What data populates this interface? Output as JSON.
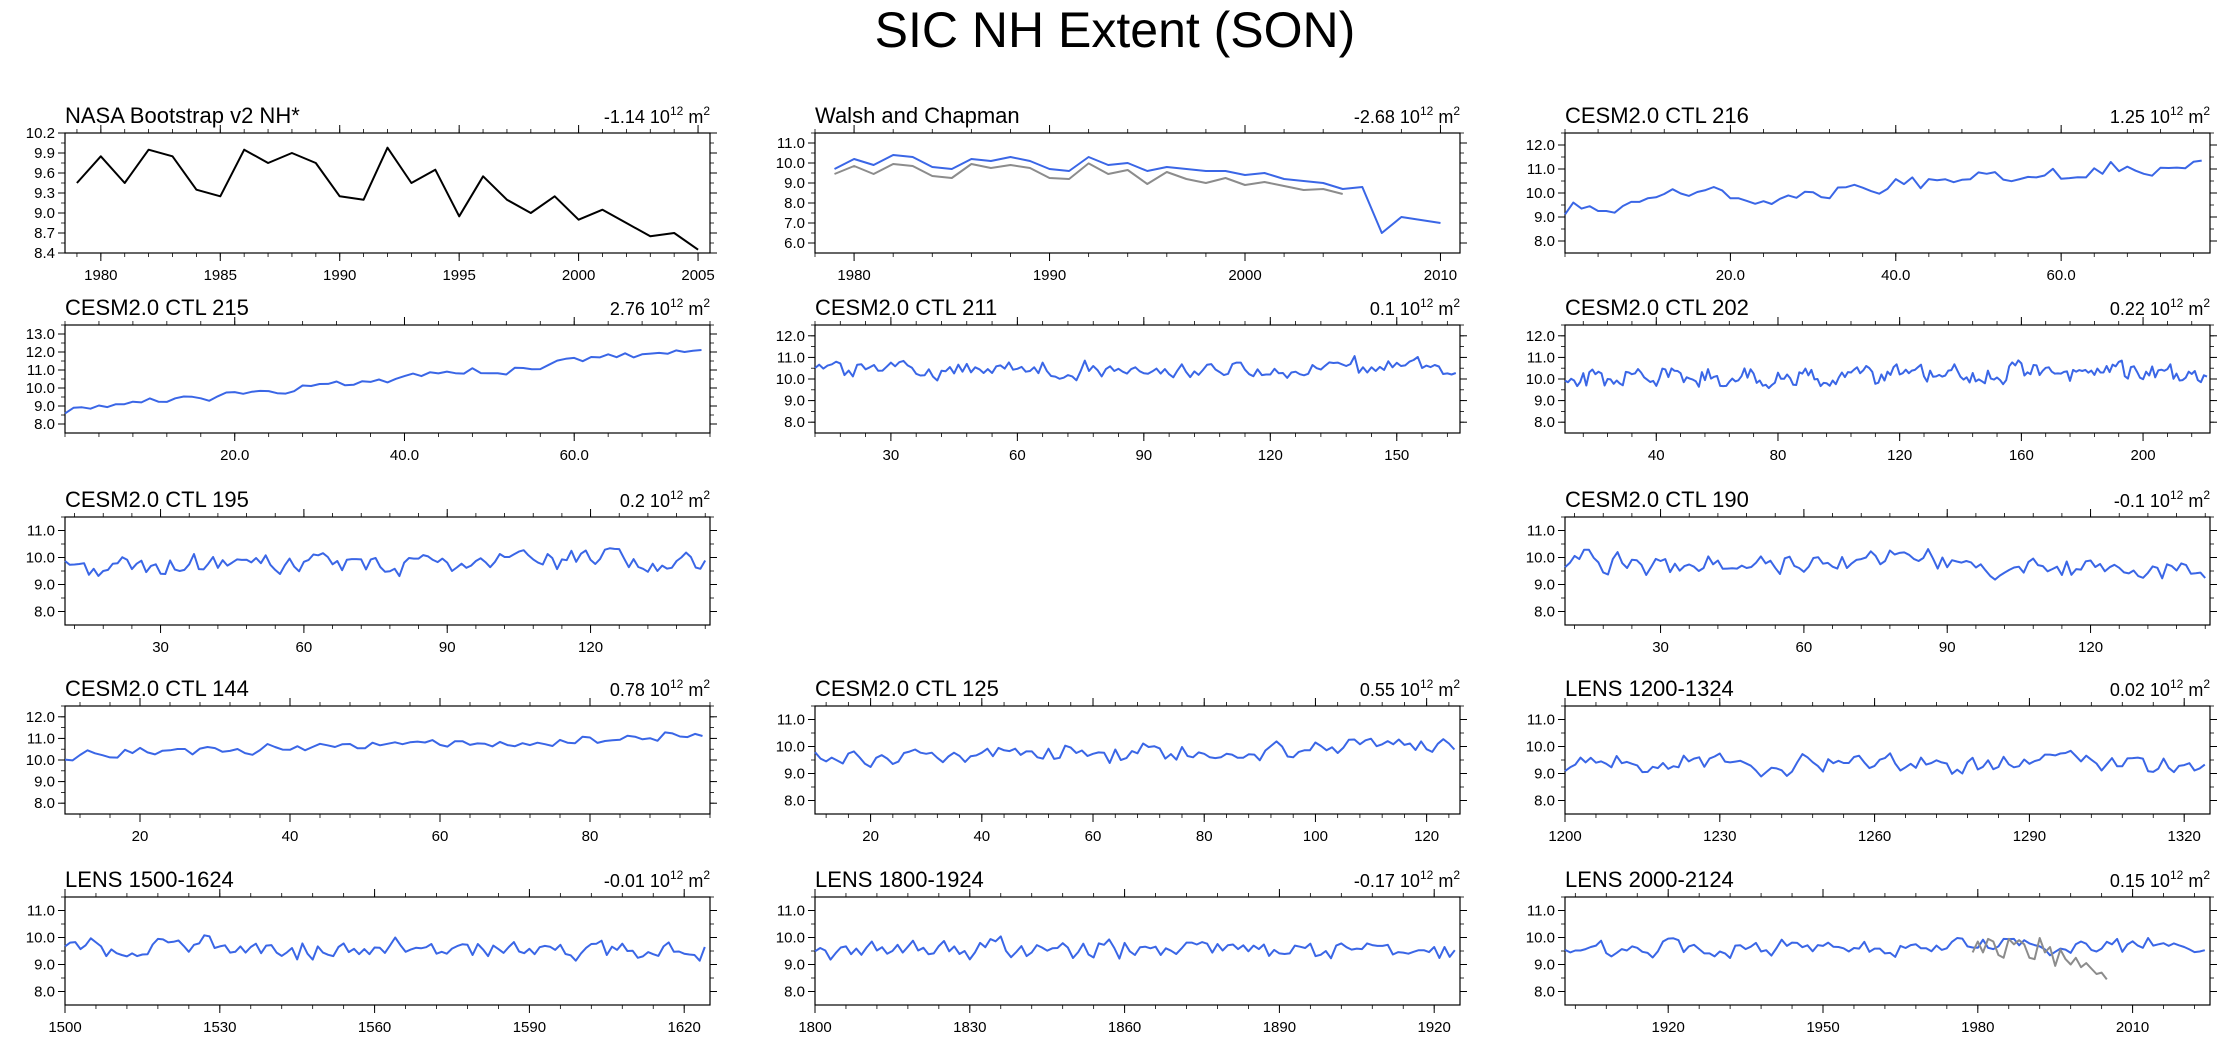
{
  "title": "SIC NH Extent (SON)",
  "colors": {
    "model": "#3a66e6",
    "obs_black": "#000000",
    "obs_grey": "#8c8c8c"
  },
  "chart_data": [
    {
      "type": "line",
      "title": "NASA Bootstrap v2 NH*",
      "trend": "-1.14",
      "trend_unit_exp": "12",
      "x_range": [
        1978.5,
        2005.5
      ],
      "ylim": [
        8.4,
        10.2
      ],
      "yticks": [
        "8.4",
        "8.7",
        "9.0",
        "9.3",
        "9.6",
        "9.9",
        "10.2"
      ],
      "xticks": [
        1980,
        1985,
        1990,
        1995,
        2000,
        2005
      ],
      "series": [
        {
          "name": "NASA Bootstrap v2",
          "color": "#000000",
          "x": [
            1979,
            1980,
            1981,
            1982,
            1983,
            1984,
            1985,
            1986,
            1987,
            1988,
            1989,
            1990,
            1991,
            1992,
            1993,
            1994,
            1995,
            1996,
            1997,
            1998,
            1999,
            2000,
            2001,
            2002,
            2003,
            2004,
            2005
          ],
          "values": [
            9.45,
            9.85,
            9.45,
            9.95,
            9.85,
            9.35,
            9.25,
            9.95,
            9.75,
            9.9,
            9.75,
            9.25,
            9.2,
            9.98,
            9.45,
            9.65,
            8.95,
            9.55,
            9.2,
            9.0,
            9.25,
            8.9,
            9.05,
            8.85,
            8.65,
            8.7,
            8.45
          ]
        }
      ]
    },
    {
      "type": "line",
      "title": "Walsh and Chapman",
      "trend": "-2.68",
      "trend_unit_exp": "12",
      "x_range": [
        1978,
        2011
      ],
      "ylim": [
        5.5,
        11.5
      ],
      "yticks": [
        "6.0",
        "7.0",
        "8.0",
        "9.0",
        "10.0",
        "11.0"
      ],
      "xticks": [
        1980,
        1990,
        2000,
        2010
      ],
      "series": [
        {
          "name": "NASA (grey)",
          "color": "#8c8c8c",
          "x": [
            1979,
            1980,
            1981,
            1982,
            1983,
            1984,
            1985,
            1986,
            1987,
            1988,
            1989,
            1990,
            1991,
            1992,
            1993,
            1994,
            1995,
            1996,
            1997,
            1998,
            1999,
            2000,
            2001,
            2002,
            2003,
            2004,
            2005
          ],
          "values": [
            9.45,
            9.85,
            9.45,
            9.95,
            9.85,
            9.35,
            9.25,
            9.95,
            9.75,
            9.9,
            9.75,
            9.25,
            9.2,
            9.98,
            9.45,
            9.65,
            8.95,
            9.55,
            9.2,
            9.0,
            9.25,
            8.9,
            9.05,
            8.85,
            8.65,
            8.7,
            8.45
          ]
        },
        {
          "name": "Walsh and Chapman",
          "color": "#3a66e6",
          "x": [
            1979,
            1980,
            1981,
            1982,
            1983,
            1984,
            1985,
            1986,
            1987,
            1988,
            1989,
            1990,
            1991,
            1992,
            1993,
            1994,
            1995,
            1996,
            1997,
            1998,
            1999,
            2000,
            2001,
            2002,
            2003,
            2004,
            2005,
            2006,
            2007,
            2008,
            2010
          ],
          "values": [
            9.7,
            10.2,
            9.9,
            10.4,
            10.3,
            9.8,
            9.7,
            10.2,
            10.1,
            10.3,
            10.1,
            9.7,
            9.6,
            10.3,
            9.9,
            10.0,
            9.6,
            9.8,
            9.7,
            9.6,
            9.6,
            9.4,
            9.5,
            9.2,
            9.1,
            9.0,
            8.7,
            8.8,
            6.5,
            7.3,
            7.0
          ]
        }
      ]
    },
    {
      "type": "line",
      "title": "CESM2.0 CTL 216",
      "trend": "1.25",
      "trend_unit_exp": "12",
      "x_range": [
        0,
        78
      ],
      "ylim": [
        7.5,
        12.5
      ],
      "yticks": [
        "8.0",
        "9.0",
        "10.0",
        "11.0",
        "12.0"
      ],
      "xticks": [
        20,
        40,
        60
      ],
      "xtick_labels": [
        "20.0",
        "40.0",
        "60.0"
      ],
      "series": [
        {
          "name": "model",
          "color": "#3a66e6",
          "gen": {
            "n": 78,
            "start": 0,
            "step": 1,
            "base": 9.3,
            "trend": 2.0,
            "amp": 0.45,
            "seed": 216
          }
        }
      ]
    },
    {
      "type": "line",
      "title": "CESM2.0 CTL 215",
      "trend": "2.76",
      "trend_unit_exp": "12",
      "x_range": [
        0,
        76
      ],
      "ylim": [
        7.5,
        13.5
      ],
      "yticks": [
        "8.0",
        "9.0",
        "10.0",
        "11.0",
        "12.0",
        "13.0"
      ],
      "xticks": [
        20,
        40,
        60
      ],
      "xtick_labels": [
        "20.0",
        "40.0",
        "60.0"
      ],
      "series": [
        {
          "name": "model",
          "color": "#3a66e6",
          "gen": {
            "n": 76,
            "start": 0,
            "step": 1,
            "base": 8.8,
            "trend": 3.3,
            "amp": 0.3,
            "seed": 215
          }
        }
      ]
    },
    {
      "type": "line",
      "title": "CESM2.0 CTL 211",
      "trend": "0.1",
      "trend_unit_exp": "12",
      "x_range": [
        12,
        165
      ],
      "ylim": [
        7.5,
        12.5
      ],
      "yticks": [
        "8.0",
        "9.0",
        "10.0",
        "11.0",
        "12.0"
      ],
      "xticks": [
        30,
        60,
        90,
        120,
        150
      ],
      "series": [
        {
          "name": "model",
          "color": "#3a66e6",
          "gen": {
            "n": 153,
            "start": 12,
            "step": 1,
            "base": 10.4,
            "trend": 0.1,
            "amp": 0.45,
            "seed": 211
          }
        }
      ]
    },
    {
      "type": "line",
      "title": "CESM2.0 CTL 202",
      "trend": "0.22",
      "trend_unit_exp": "12",
      "x_range": [
        10,
        222
      ],
      "ylim": [
        7.5,
        12.5
      ],
      "yticks": [
        "8.0",
        "9.0",
        "10.0",
        "11.0",
        "12.0"
      ],
      "xticks": [
        40,
        80,
        120,
        160,
        200
      ],
      "series": [
        {
          "name": "model",
          "color": "#3a66e6",
          "gen": {
            "n": 212,
            "start": 10,
            "step": 1,
            "base": 10.1,
            "trend": 0.2,
            "amp": 0.5,
            "seed": 202
          }
        }
      ]
    },
    {
      "type": "line",
      "title": "CESM2.0 CTL 195",
      "trend": "0.2",
      "trend_unit_exp": "12",
      "x_range": [
        10,
        145
      ],
      "ylim": [
        7.5,
        11.5
      ],
      "yticks": [
        "8.0",
        "9.0",
        "10.0",
        "11.0"
      ],
      "xticks": [
        30,
        60,
        90,
        120
      ],
      "series": [
        {
          "name": "model",
          "color": "#3a66e6",
          "gen": {
            "n": 135,
            "start": 10,
            "step": 1,
            "base": 9.7,
            "trend": 0.2,
            "amp": 0.45,
            "seed": 195
          }
        }
      ]
    },
    {
      "type": "line",
      "title": "CESM2.0 CTL 190",
      "trend": "-0.1",
      "trend_unit_exp": "12",
      "x_range": [
        10,
        145
      ],
      "ylim": [
        7.5,
        11.5
      ],
      "yticks": [
        "8.0",
        "9.0",
        "10.0",
        "11.0"
      ],
      "xticks": [
        30,
        60,
        90,
        120
      ],
      "series": [
        {
          "name": "model",
          "color": "#3a66e6",
          "gen": {
            "n": 135,
            "start": 10,
            "step": 1,
            "base": 9.8,
            "trend": -0.1,
            "amp": 0.45,
            "seed": 190
          }
        }
      ]
    },
    {
      "type": "line",
      "title": "CESM2.0 CTL 144",
      "trend": "0.78",
      "trend_unit_exp": "12",
      "x_range": [
        10,
        96
      ],
      "ylim": [
        7.5,
        12.5
      ],
      "yticks": [
        "8.0",
        "9.0",
        "10.0",
        "11.0",
        "12.0"
      ],
      "xticks": [
        20,
        40,
        60,
        80
      ],
      "series": [
        {
          "name": "model",
          "color": "#3a66e6",
          "gen": {
            "n": 86,
            "start": 10,
            "step": 1,
            "base": 10.2,
            "trend": 0.9,
            "amp": 0.3,
            "seed": 144
          }
        }
      ]
    },
    {
      "type": "line",
      "title": "CESM2.0 CTL 125",
      "trend": "0.55",
      "trend_unit_exp": "12",
      "x_range": [
        10,
        126
      ],
      "ylim": [
        7.5,
        11.5
      ],
      "yticks": [
        "8.0",
        "9.0",
        "10.0",
        "11.0"
      ],
      "xticks": [
        20,
        40,
        60,
        80,
        100,
        120
      ],
      "series": [
        {
          "name": "model",
          "color": "#3a66e6",
          "gen": {
            "n": 116,
            "start": 10,
            "step": 1,
            "base": 9.5,
            "trend": 0.5,
            "amp": 0.4,
            "seed": 125
          }
        }
      ]
    },
    {
      "type": "line",
      "title": "LENS 1200-1324",
      "trend": "0.02",
      "trend_unit_exp": "12",
      "x_range": [
        1200,
        1325
      ],
      "ylim": [
        7.5,
        11.5
      ],
      "yticks": [
        "8.0",
        "9.0",
        "10.0",
        "11.0"
      ],
      "xticks": [
        1200,
        1230,
        1260,
        1290,
        1320
      ],
      "series": [
        {
          "name": "model",
          "color": "#3a66e6",
          "gen": {
            "n": 125,
            "start": 1200,
            "step": 1,
            "base": 9.4,
            "trend": 0.0,
            "amp": 0.4,
            "seed": 1200
          }
        }
      ]
    },
    {
      "type": "line",
      "title": "LENS 1500-1624",
      "trend": "-0.01",
      "trend_unit_exp": "12",
      "x_range": [
        1500,
        1625
      ],
      "ylim": [
        7.5,
        11.5
      ],
      "yticks": [
        "8.0",
        "9.0",
        "10.0",
        "11.0"
      ],
      "xticks": [
        1500,
        1530,
        1560,
        1590,
        1620
      ],
      "series": [
        {
          "name": "model",
          "color": "#3a66e6",
          "gen": {
            "n": 125,
            "start": 1500,
            "step": 1,
            "base": 9.6,
            "trend": 0.0,
            "amp": 0.4,
            "seed": 1500
          }
        }
      ]
    },
    {
      "type": "line",
      "title": "LENS 1800-1924",
      "trend": "-0.17",
      "trend_unit_exp": "12",
      "x_range": [
        1800,
        1925
      ],
      "ylim": [
        7.5,
        11.5
      ],
      "yticks": [
        "8.0",
        "9.0",
        "10.0",
        "11.0"
      ],
      "xticks": [
        1800,
        1830,
        1860,
        1890,
        1920
      ],
      "series": [
        {
          "name": "model",
          "color": "#3a66e6",
          "gen": {
            "n": 125,
            "start": 1800,
            "step": 1,
            "base": 9.6,
            "trend": -0.15,
            "amp": 0.4,
            "seed": 1800
          }
        }
      ]
    },
    {
      "type": "line",
      "title": "LENS 2000-2124",
      "trend": "0.15",
      "trend_unit_exp": "12",
      "x_range": [
        1900,
        2025
      ],
      "ylim": [
        7.5,
        11.5
      ],
      "yticks": [
        "8.0",
        "9.0",
        "10.0",
        "11.0"
      ],
      "xticks": [
        1920,
        1950,
        1980,
        2010
      ],
      "series": [
        {
          "name": "model",
          "color": "#3a66e6",
          "gen": {
            "n": 125,
            "start": 1900,
            "step": 1,
            "base": 9.6,
            "trend": 0.1,
            "amp": 0.35,
            "seed": 2000
          }
        },
        {
          "name": "NASA (grey)",
          "color": "#8c8c8c",
          "x": [
            1979,
            1980,
            1981,
            1982,
            1983,
            1984,
            1985,
            1986,
            1987,
            1988,
            1989,
            1990,
            1991,
            1992,
            1993,
            1994,
            1995,
            1996,
            1997,
            1998,
            1999,
            2000,
            2001,
            2002,
            2003,
            2004,
            2005
          ],
          "values": [
            9.45,
            9.85,
            9.45,
            9.95,
            9.85,
            9.35,
            9.25,
            9.95,
            9.75,
            9.9,
            9.75,
            9.25,
            9.2,
            9.98,
            9.45,
            9.65,
            8.95,
            9.55,
            9.2,
            9.0,
            9.25,
            8.9,
            9.05,
            8.85,
            8.65,
            8.7,
            8.45
          ]
        }
      ]
    }
  ]
}
